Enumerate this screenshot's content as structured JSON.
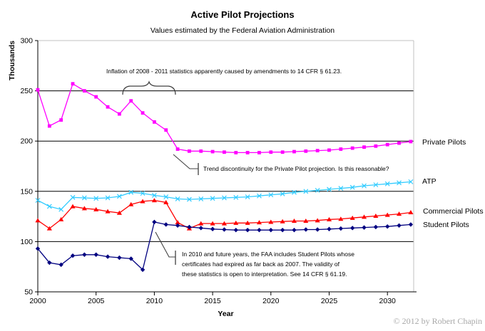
{
  "header": {
    "title": "Active Pilot Projections",
    "subtitle": "Values estimated by the Federal Aviation Administration"
  },
  "footer": {
    "copyright": "© 2012 by Robert Chapin"
  },
  "chart_data": {
    "type": "line",
    "title": "Active Pilot Projections",
    "subtitle": "Values estimated by the Federal Aviation Administration",
    "xlabel": "Year",
    "ylabel": "Thousands",
    "xlim": [
      2000,
      2032.5
    ],
    "ylim": [
      50,
      300
    ],
    "x_ticks": [
      2000,
      2005,
      2010,
      2015,
      2020,
      2025,
      2030
    ],
    "y_ticks": [
      50,
      100,
      150,
      200,
      250,
      300
    ],
    "grid": "horizontal-major",
    "legend_position": "right-of-line-ends",
    "x": [
      2000,
      2001,
      2002,
      2003,
      2004,
      2005,
      2006,
      2007,
      2008,
      2009,
      2010,
      2011,
      2012,
      2013,
      2014,
      2015,
      2016,
      2017,
      2018,
      2019,
      2020,
      2021,
      2022,
      2023,
      2024,
      2025,
      2026,
      2027,
      2028,
      2029,
      2030,
      2031,
      2032
    ],
    "series": [
      {
        "name": "Private Pilots",
        "color": "#FF00FF",
        "marker": "square",
        "values": [
          251,
          215,
          221,
          257,
          250,
          244,
          234,
          227,
          240,
          228,
          219,
          211,
          192,
          190,
          190,
          189.5,
          189,
          188.5,
          188.5,
          188.5,
          189,
          189,
          189.5,
          190,
          190.5,
          191,
          192,
          193,
          194,
          195,
          196.5,
          198,
          199.5
        ]
      },
      {
        "name": "ATP",
        "color": "#33CCFF",
        "marker": "x",
        "values": [
          141,
          135,
          132,
          144,
          143.5,
          143,
          143.5,
          145,
          149,
          148,
          146,
          144.5,
          142.5,
          142,
          142.5,
          143,
          143.5,
          144,
          144.5,
          145.5,
          146.5,
          147.5,
          149,
          150,
          151,
          152,
          153,
          154,
          155.5,
          156.5,
          157.5,
          158.5,
          159.5
        ]
      },
      {
        "name": "Commercial Pilots",
        "color": "#FF0000",
        "marker": "triangle",
        "values": [
          121,
          113,
          122,
          135,
          133,
          132,
          130,
          128.5,
          137,
          140,
          141,
          139,
          119,
          113,
          118,
          118,
          118,
          118.5,
          118.5,
          119,
          119.5,
          120,
          120.5,
          120.5,
          121,
          122,
          122.5,
          123.5,
          124.5,
          125.5,
          126.5,
          127.5,
          129
        ]
      },
      {
        "name": "Student Pilots",
        "color": "#000080",
        "marker": "diamond",
        "values": [
          93,
          79,
          77,
          86,
          87,
          87,
          85,
          84,
          83,
          72,
          119.5,
          117,
          116,
          114.5,
          113.5,
          112.5,
          112,
          111.5,
          111.5,
          111.5,
          111.5,
          111.5,
          111.5,
          112,
          112,
          112.5,
          113,
          113.5,
          114,
          114.5,
          115,
          116,
          117
        ]
      }
    ],
    "annotations": [
      {
        "id": "inflation",
        "type": "brace-label",
        "span_years": "2008-2011",
        "text": "Inflation of 2008 - 2011 statistics apparently caused by amendments to 14 CFR § 61.23."
      },
      {
        "id": "discontinuity",
        "type": "callout",
        "text": "Trend discontinuity for the Private Pilot projection.  Is this reasonable?"
      },
      {
        "id": "student_note",
        "type": "callout",
        "lines": [
          "In 2010 and future years, the FAA includes Student Pilots whose",
          "certificates had expired as far back as 2007.  The validity of",
          "these statistics is open to interpretation.  See 14 CFR § 61.19."
        ]
      }
    ]
  }
}
